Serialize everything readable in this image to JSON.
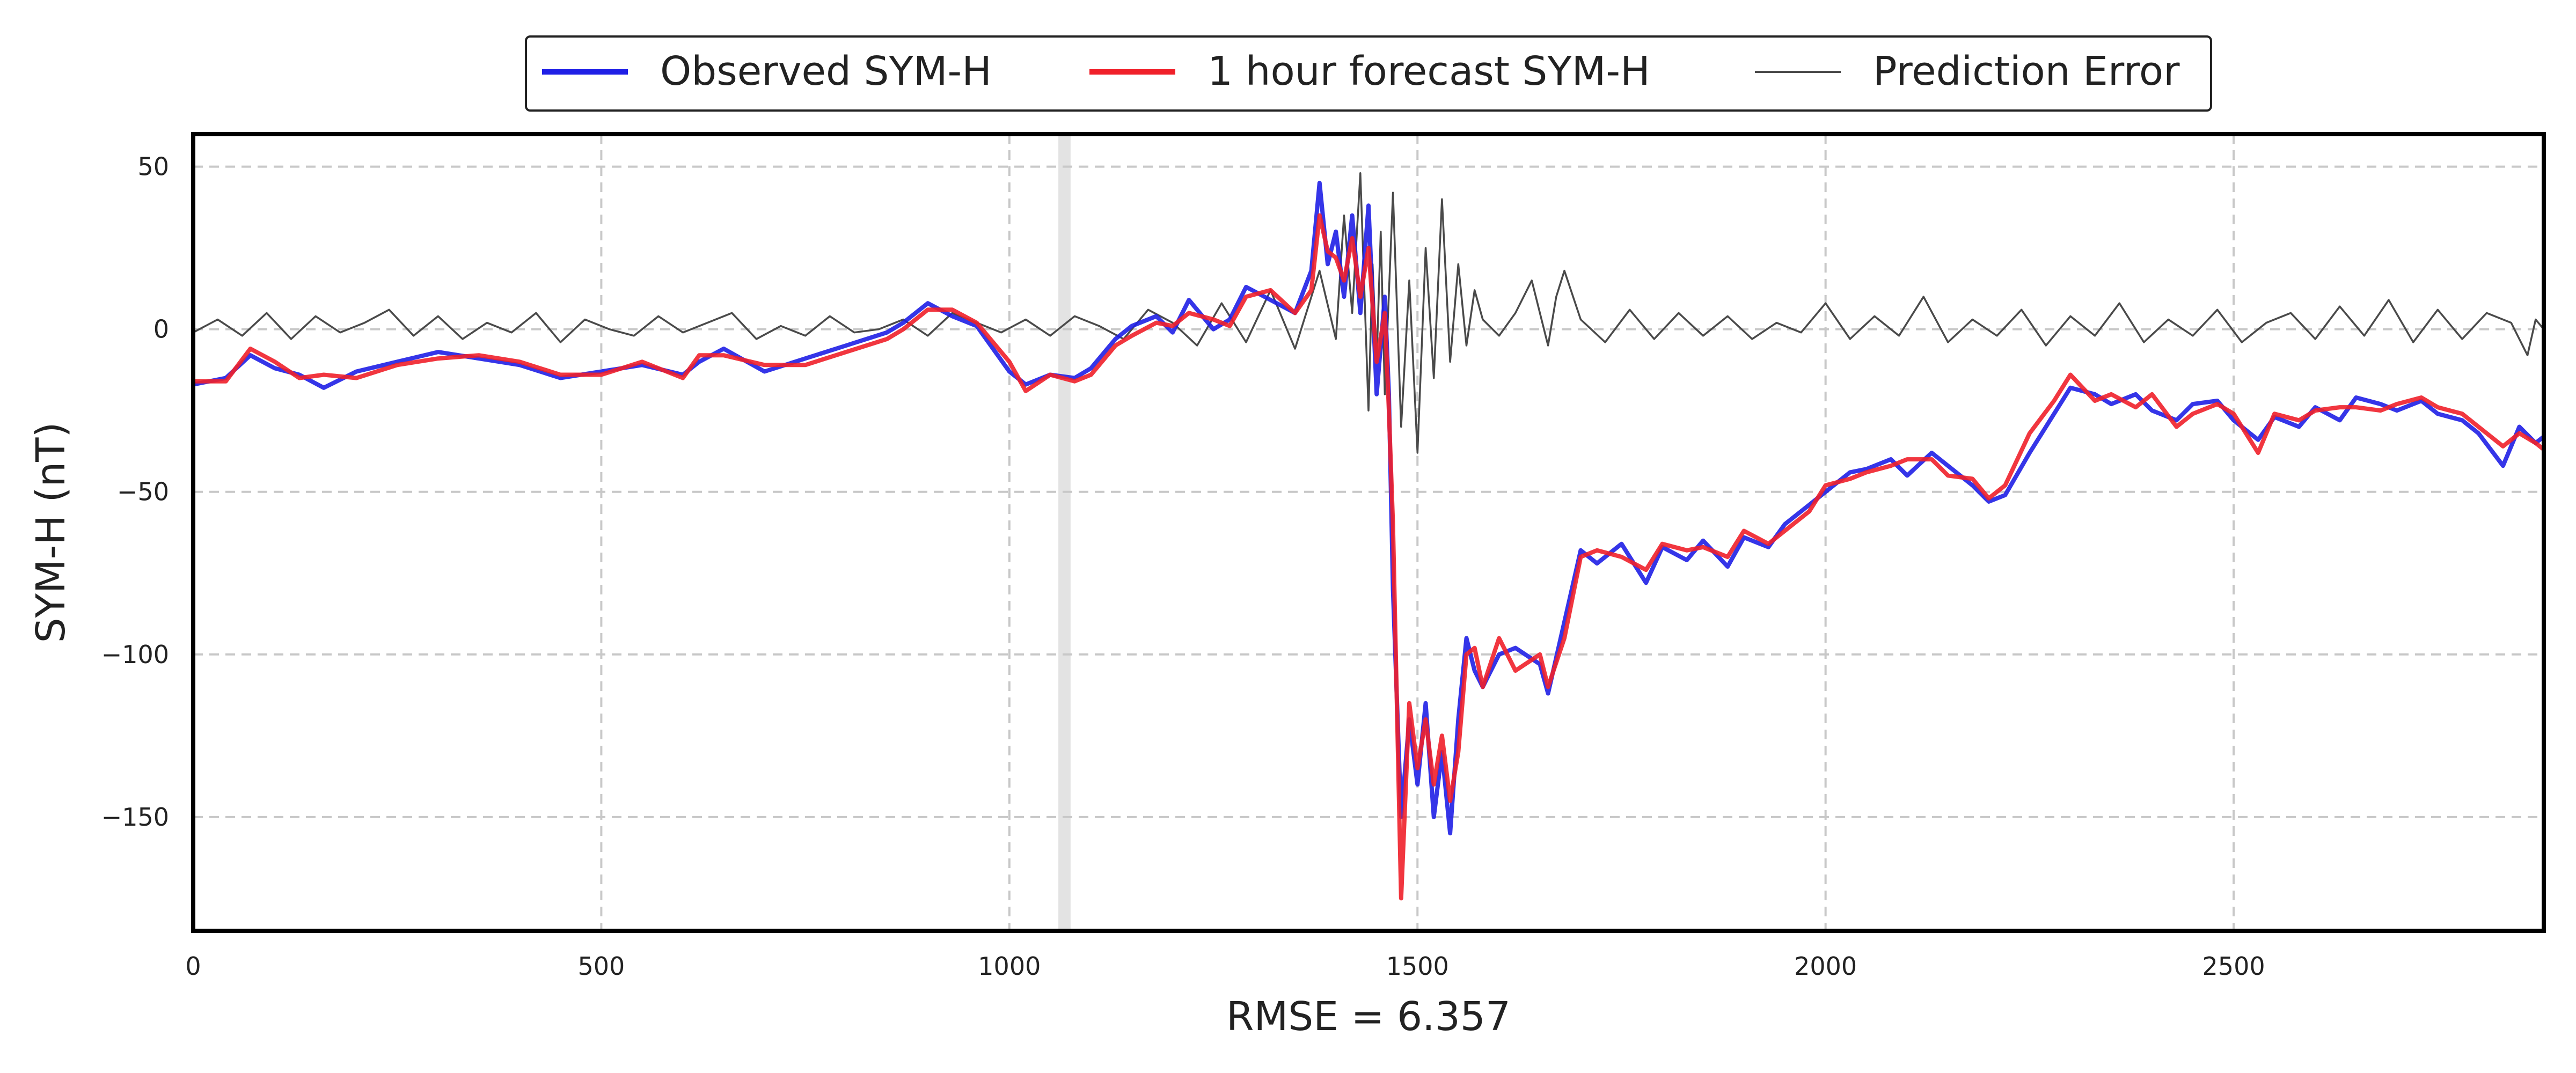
{
  "chart_data": {
    "type": "line",
    "xlabel": "RMSE = 6.357",
    "ylabel": "SYM-H (nT)",
    "xlim": [
      0,
      2880
    ],
    "ylim": [
      -185,
      60
    ],
    "grid": true,
    "legend_placement": "top-center (outside plot)",
    "x_ticks": [
      0,
      500,
      1000,
      1500,
      2000,
      2500
    ],
    "y_ticks": [
      50,
      0,
      -50,
      -100,
      -150
    ],
    "x_tick_labels": [
      "0",
      "500",
      "1000",
      "1500",
      "2000",
      "2500"
    ],
    "y_tick_labels": [
      "50",
      "0",
      "−50",
      "−100",
      "−150"
    ],
    "highlight_band": {
      "x_start": 1060,
      "x_end": 1075,
      "color": "#e3e3e3"
    },
    "series": [
      {
        "name": "Observed SYM-H",
        "color": "#1f1fe6",
        "x": [
          0,
          40,
          70,
          100,
          130,
          160,
          200,
          250,
          300,
          350,
          400,
          450,
          500,
          550,
          600,
          620,
          650,
          700,
          750,
          800,
          850,
          870,
          900,
          930,
          960,
          1000,
          1020,
          1050,
          1080,
          1100,
          1130,
          1150,
          1180,
          1200,
          1220,
          1250,
          1270,
          1290,
          1320,
          1350,
          1370,
          1380,
          1390,
          1400,
          1410,
          1420,
          1430,
          1440,
          1450,
          1460,
          1465,
          1470,
          1480,
          1490,
          1500,
          1510,
          1520,
          1530,
          1540,
          1550,
          1560,
          1570,
          1580,
          1600,
          1620,
          1650,
          1660,
          1680,
          1700,
          1720,
          1750,
          1780,
          1800,
          1830,
          1850,
          1880,
          1900,
          1930,
          1950,
          1980,
          2000,
          2030,
          2050,
          2080,
          2100,
          2130,
          2150,
          2180,
          2200,
          2220,
          2250,
          2280,
          2300,
          2330,
          2350,
          2380,
          2400,
          2430,
          2450,
          2480,
          2500,
          2530,
          2550,
          2580,
          2600,
          2630,
          2650,
          2680,
          2700,
          2730,
          2750,
          2780,
          2800,
          2830,
          2850,
          2870,
          2880
        ],
        "y": [
          -17,
          -15,
          -8,
          -12,
          -14,
          -18,
          -13,
          -10,
          -7,
          -9,
          -11,
          -15,
          -13,
          -11,
          -14,
          -10,
          -6,
          -13,
          -9,
          -5,
          -1,
          2,
          8,
          4,
          1,
          -13,
          -17,
          -14,
          -15,
          -12,
          -3,
          1,
          4,
          -1,
          9,
          0,
          3,
          13,
          9,
          5,
          18,
          45,
          20,
          30,
          10,
          35,
          5,
          38,
          -20,
          10,
          -20,
          -80,
          -150,
          -120,
          -140,
          -115,
          -150,
          -130,
          -155,
          -120,
          -95,
          -105,
          -110,
          -100,
          -98,
          -103,
          -112,
          -90,
          -68,
          -72,
          -66,
          -78,
          -67,
          -71,
          -65,
          -73,
          -64,
          -67,
          -60,
          -54,
          -50,
          -44,
          -43,
          -40,
          -45,
          -38,
          -42,
          -48,
          -53,
          -51,
          -38,
          -26,
          -18,
          -20,
          -23,
          -20,
          -25,
          -28,
          -23,
          -22,
          -28,
          -34,
          -27,
          -30,
          -24,
          -28,
          -21,
          -23,
          -25,
          -22,
          -26,
          -28,
          -32,
          -42,
          -30,
          -35,
          -33
        ]
      },
      {
        "name": "1 hour forecast SYM-H",
        "color": "#f0202a",
        "x": [
          0,
          40,
          70,
          100,
          130,
          160,
          200,
          250,
          300,
          350,
          400,
          450,
          500,
          550,
          600,
          620,
          650,
          700,
          750,
          800,
          850,
          870,
          900,
          930,
          960,
          1000,
          1020,
          1050,
          1080,
          1100,
          1130,
          1150,
          1180,
          1200,
          1220,
          1250,
          1270,
          1290,
          1320,
          1350,
          1370,
          1380,
          1390,
          1400,
          1410,
          1420,
          1430,
          1440,
          1450,
          1460,
          1465,
          1470,
          1480,
          1490,
          1500,
          1510,
          1520,
          1530,
          1540,
          1550,
          1560,
          1570,
          1580,
          1600,
          1620,
          1650,
          1660,
          1680,
          1700,
          1720,
          1750,
          1780,
          1800,
          1830,
          1850,
          1880,
          1900,
          1930,
          1950,
          1980,
          2000,
          2030,
          2050,
          2080,
          2100,
          2130,
          2150,
          2180,
          2200,
          2220,
          2250,
          2280,
          2300,
          2330,
          2350,
          2380,
          2400,
          2430,
          2450,
          2480,
          2500,
          2530,
          2550,
          2580,
          2600,
          2630,
          2650,
          2680,
          2700,
          2730,
          2750,
          2780,
          2800,
          2830,
          2850,
          2870,
          2880
        ],
        "y": [
          -16,
          -16,
          -6,
          -10,
          -15,
          -14,
          -15,
          -11,
          -9,
          -8,
          -10,
          -14,
          -14,
          -10,
          -15,
          -8,
          -8,
          -11,
          -11,
          -7,
          -3,
          0,
          6,
          6,
          2,
          -10,
          -19,
          -14,
          -16,
          -14,
          -5,
          -2,
          2,
          1,
          5,
          3,
          1,
          10,
          12,
          5,
          12,
          35,
          24,
          22,
          15,
          28,
          10,
          25,
          -10,
          5,
          -25,
          -60,
          -175,
          -115,
          -135,
          -120,
          -140,
          -125,
          -145,
          -130,
          -100,
          -98,
          -110,
          -95,
          -105,
          -100,
          -110,
          -95,
          -70,
          -68,
          -70,
          -74,
          -66,
          -68,
          -67,
          -70,
          -62,
          -66,
          -62,
          -56,
          -48,
          -46,
          -44,
          -42,
          -40,
          -40,
          -45,
          -46,
          -52,
          -48,
          -32,
          -22,
          -14,
          -22,
          -20,
          -24,
          -20,
          -30,
          -26,
          -23,
          -26,
          -38,
          -26,
          -28,
          -25,
          -24,
          -24,
          -25,
          -23,
          -21,
          -24,
          -26,
          -30,
          -36,
          -32,
          -35,
          -37
        ]
      },
      {
        "name": "Prediction Error",
        "color": "#4a4a4a",
        "x": [
          0,
          30,
          60,
          90,
          120,
          150,
          180,
          210,
          240,
          270,
          300,
          330,
          360,
          390,
          420,
          450,
          480,
          510,
          540,
          570,
          600,
          630,
          660,
          690,
          720,
          750,
          780,
          810,
          840,
          870,
          900,
          930,
          960,
          990,
          1020,
          1050,
          1080,
          1110,
          1140,
          1170,
          1200,
          1230,
          1260,
          1290,
          1320,
          1350,
          1380,
          1400,
          1410,
          1420,
          1430,
          1440,
          1445,
          1450,
          1455,
          1460,
          1470,
          1480,
          1490,
          1500,
          1510,
          1520,
          1530,
          1540,
          1550,
          1560,
          1570,
          1580,
          1600,
          1620,
          1640,
          1660,
          1670,
          1680,
          1700,
          1730,
          1760,
          1790,
          1820,
          1850,
          1880,
          1910,
          1940,
          1970,
          2000,
          2030,
          2060,
          2090,
          2120,
          2150,
          2180,
          2210,
          2240,
          2270,
          2300,
          2330,
          2360,
          2390,
          2420,
          2450,
          2480,
          2510,
          2540,
          2570,
          2600,
          2630,
          2660,
          2690,
          2720,
          2750,
          2780,
          2810,
          2840,
          2860,
          2870,
          2880
        ],
        "y": [
          -1,
          3,
          -2,
          5,
          -3,
          4,
          -1,
          2,
          6,
          -2,
          4,
          -3,
          2,
          -1,
          5,
          -4,
          3,
          0,
          -2,
          4,
          -1,
          2,
          5,
          -3,
          1,
          -2,
          4,
          -1,
          0,
          3,
          -2,
          5,
          2,
          -1,
          3,
          -2,
          4,
          1,
          -3,
          6,
          2,
          -5,
          8,
          -4,
          12,
          -6,
          18,
          -3,
          35,
          5,
          48,
          -25,
          20,
          -10,
          30,
          -20,
          42,
          -30,
          15,
          -38,
          25,
          -15,
          40,
          -10,
          20,
          -5,
          12,
          3,
          -2,
          5,
          15,
          -5,
          10,
          18,
          3,
          -4,
          6,
          -3,
          5,
          -2,
          4,
          -3,
          2,
          -1,
          8,
          -3,
          4,
          -2,
          10,
          -4,
          3,
          -2,
          6,
          -5,
          4,
          -2,
          8,
          -4,
          3,
          -2,
          6,
          -4,
          2,
          5,
          -3,
          7,
          -2,
          9,
          -4,
          6,
          -3,
          5,
          2,
          -8,
          3,
          0
        ]
      }
    ]
  }
}
